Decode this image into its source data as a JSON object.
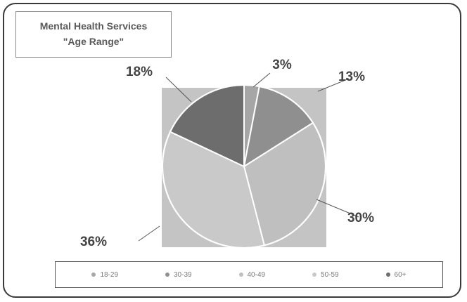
{
  "chart_data": {
    "type": "pie",
    "title": "Mental Health Services",
    "subtitle": "\"Age Range\"",
    "categories": [
      "18-29",
      "30-39",
      "40-49",
      "50-59",
      "60+"
    ],
    "values": [
      3,
      13,
      30,
      36,
      18
    ],
    "labels": [
      "3%",
      "13%",
      "30%",
      "36%",
      "18%"
    ],
    "colors": [
      "#a6a6a6",
      "#8f8f8f",
      "#bfbfbf",
      "#c9c9c9",
      "#6d6d6d"
    ],
    "plot_background": "#c4c4c4",
    "legend_position": "bottom"
  }
}
